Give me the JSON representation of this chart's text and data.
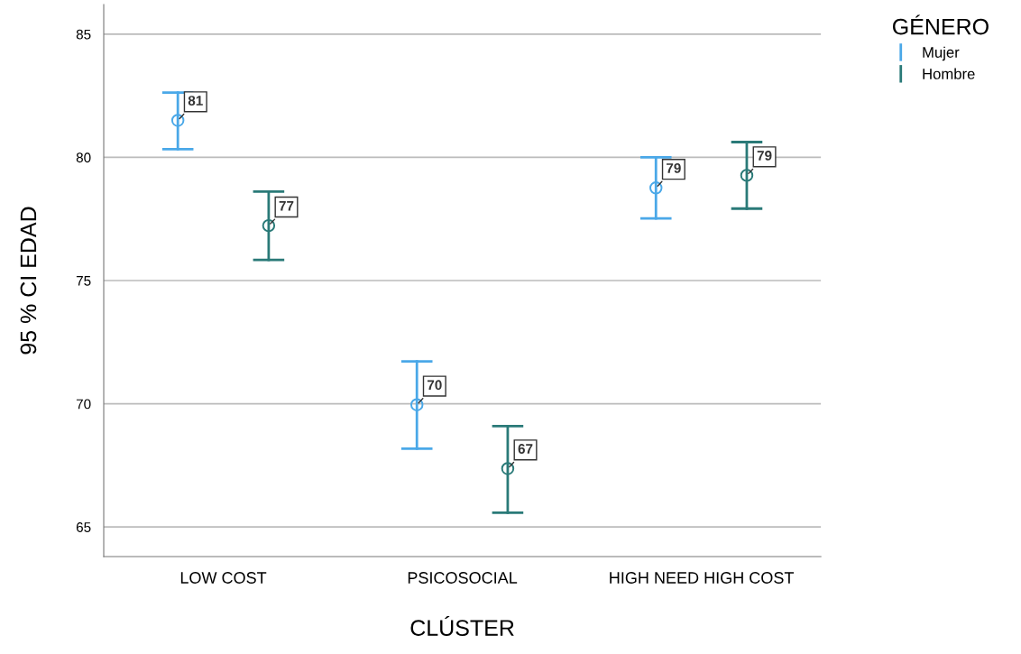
{
  "chart_data": {
    "type": "scatter",
    "xlabel": "CLÚSTER",
    "ylabel": "95 % CI EDAD",
    "legend_title": "GÉNERO",
    "categories": [
      "LOW COST",
      "PSICOSOCIAL",
      "HIGH NEED HIGH COST"
    ],
    "series": [
      {
        "name": "Mujer",
        "color": "#4aa8e8",
        "values": [
          81.5,
          69.96,
          78.76
        ],
        "errors": [
          [
            80.33,
            82.63
          ],
          [
            68.18,
            71.72
          ],
          [
            77.52,
            80.0
          ]
        ],
        "value_labels": [
          "81",
          "70",
          "79"
        ]
      },
      {
        "name": "Hombre",
        "color": "#2a7a78",
        "values": [
          77.23,
          67.37,
          79.27
        ],
        "errors": [
          [
            75.84,
            78.61
          ],
          [
            65.58,
            69.09
          ],
          [
            77.92,
            80.62
          ]
        ],
        "value_labels": [
          "77",
          "67",
          "79"
        ]
      }
    ],
    "ylim": [
      63.8,
      86.2
    ],
    "yticks": [
      65,
      70,
      75,
      80,
      85
    ],
    "grid": "y",
    "legend": "top right",
    "marker": "circle"
  }
}
